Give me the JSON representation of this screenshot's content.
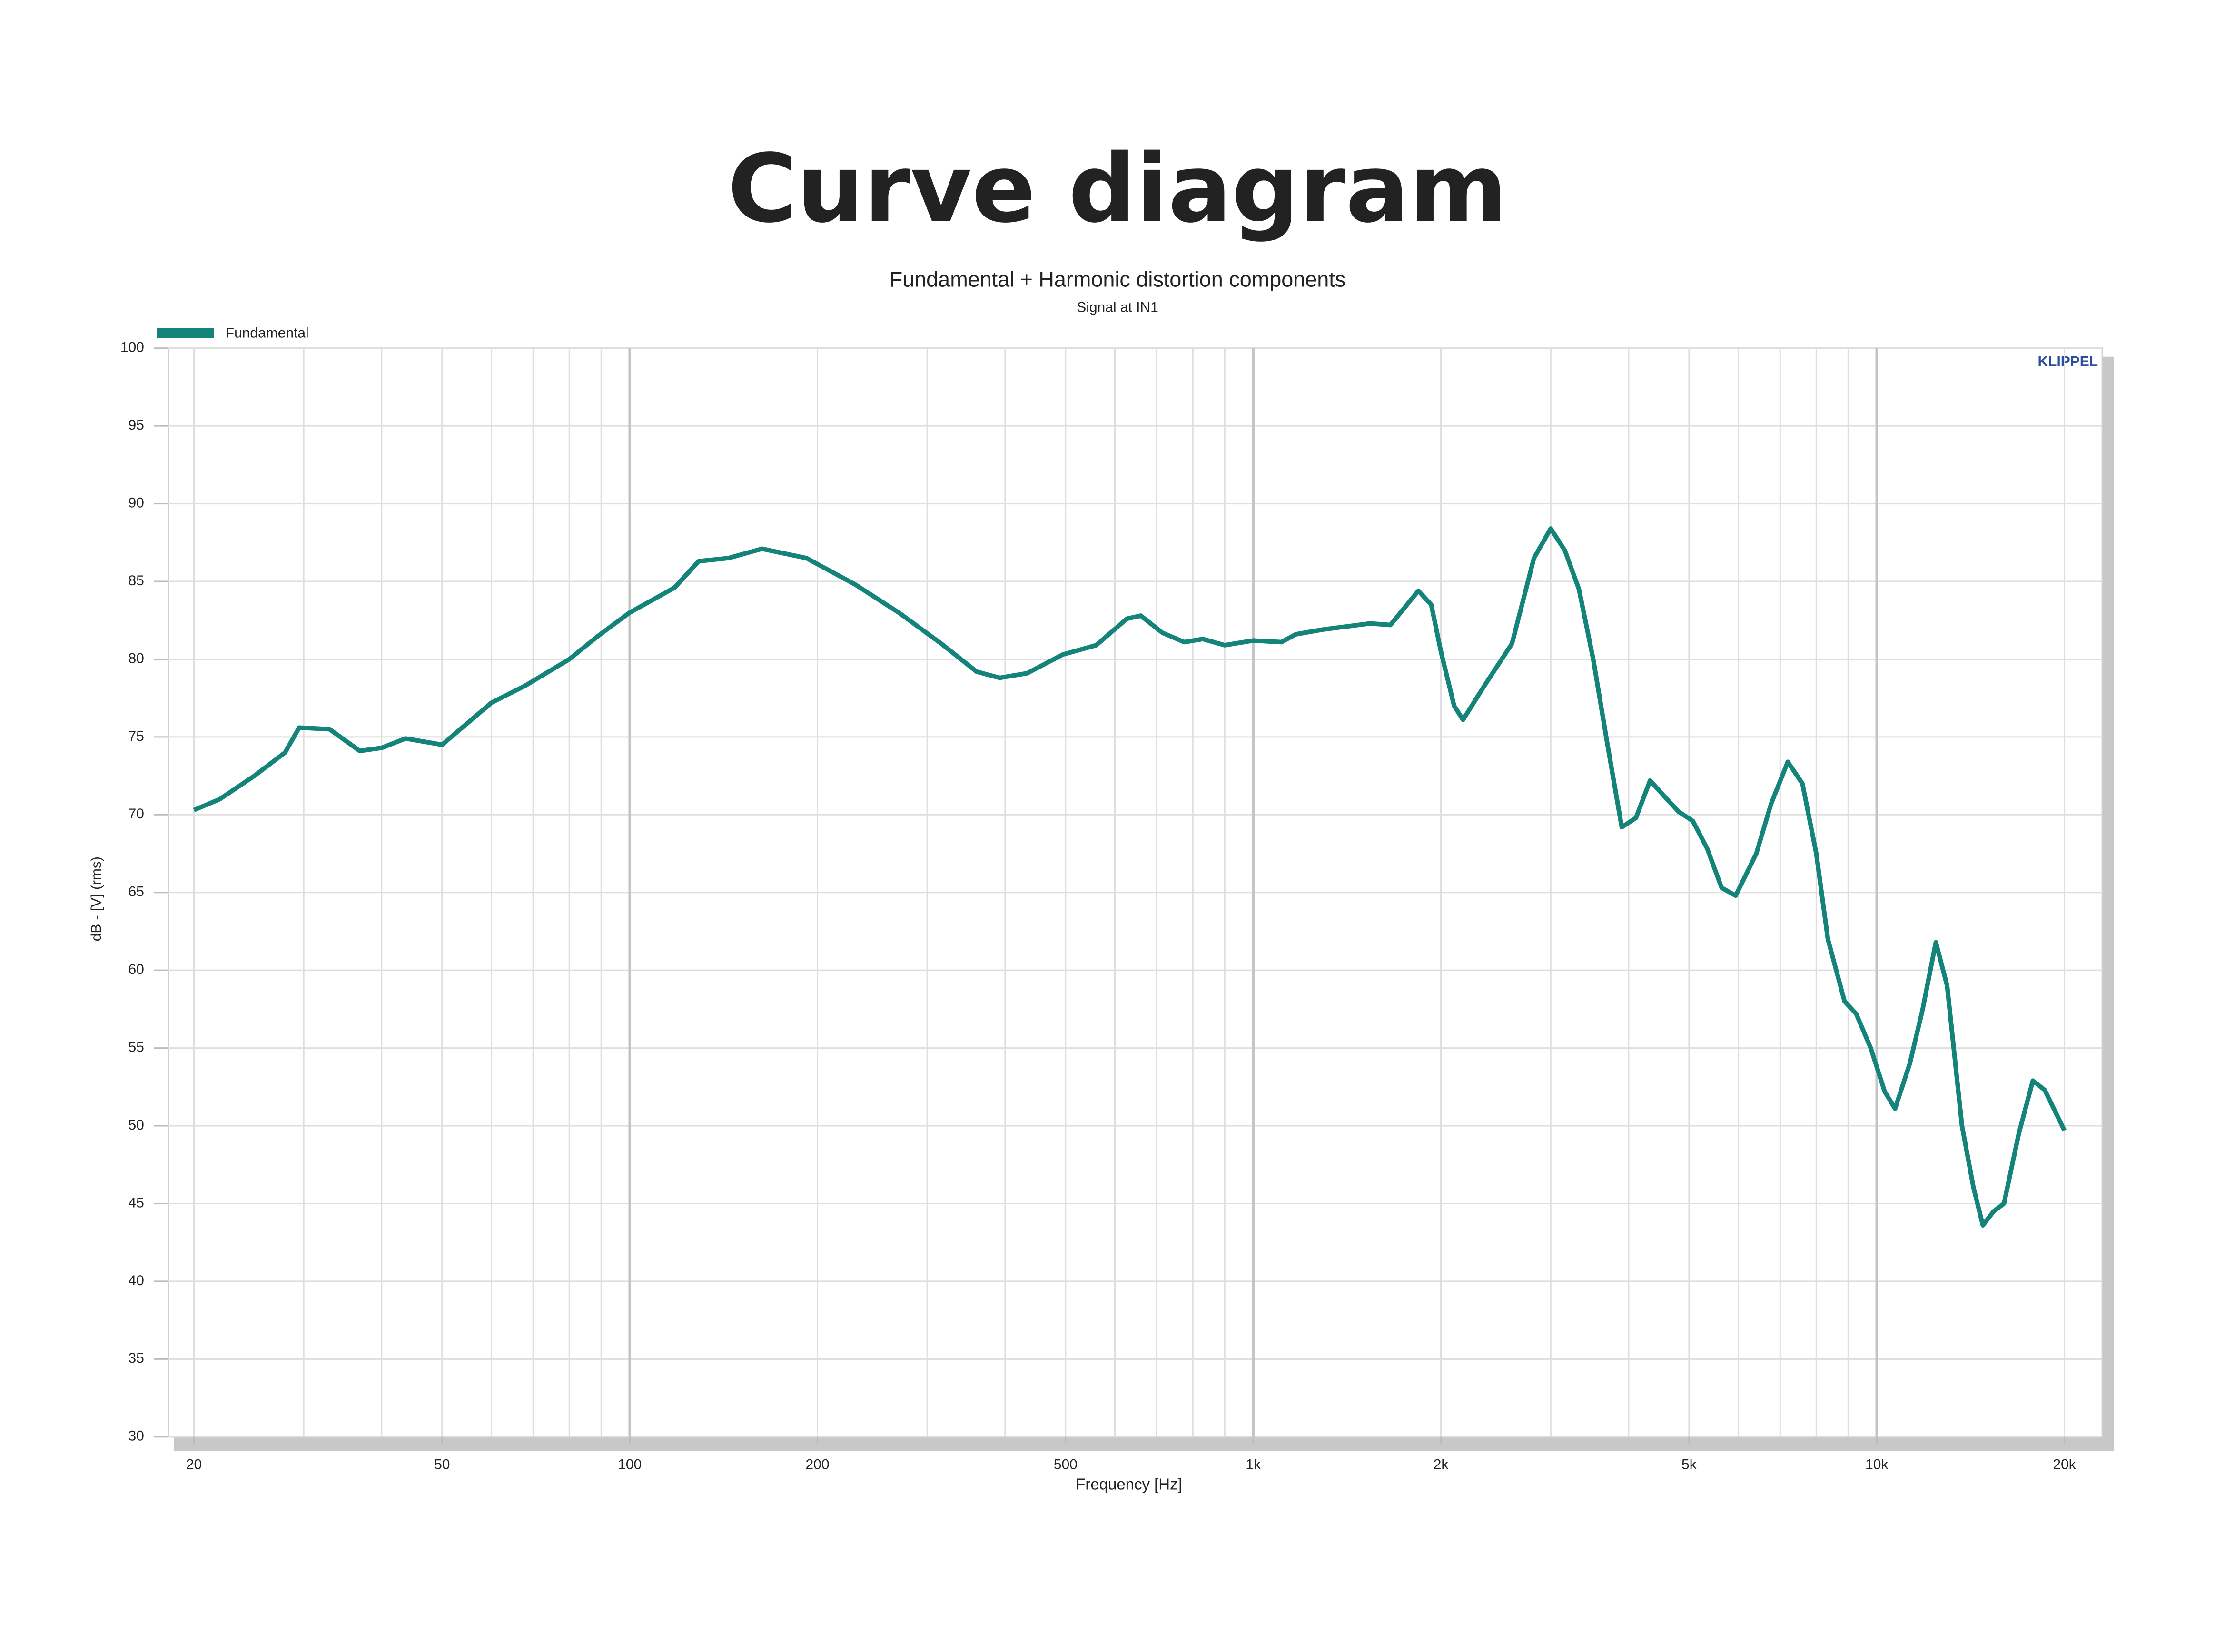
{
  "chart_data": {
    "type": "line",
    "title": "Curve diagram",
    "subtitle": "Fundamental + Harmonic distortion components",
    "subtitle2": "Signal at IN1",
    "watermark": "KLIPPEL",
    "x_label": "Frequency [Hz]",
    "y_label": "dB - [V] (rms)",
    "x_scale": "log",
    "grid": true,
    "legend": "top-left",
    "xlim": [
      18.2,
      23000
    ],
    "ylim": [
      30,
      100
    ],
    "xticks": [
      20,
      50,
      100,
      200,
      500,
      {
        "value": 1000,
        "label": "1k"
      },
      {
        "value": 2000,
        "label": "2k"
      },
      {
        "value": 5000,
        "label": "5k"
      },
      {
        "value": 10000,
        "label": "10k"
      },
      {
        "value": 20000,
        "label": "20k"
      }
    ],
    "x_minor_grid": [
      30,
      40,
      60,
      70,
      80,
      90,
      300,
      400,
      600,
      700,
      800,
      900,
      3000,
      4000,
      6000,
      7000,
      8000,
      9000
    ],
    "x_major_grid": [
      100,
      1000,
      10000
    ],
    "yticks": [
      30,
      35,
      40,
      45,
      50,
      55,
      60,
      65,
      70,
      75,
      80,
      85,
      90,
      95,
      100
    ],
    "x": [
      20,
      22,
      25,
      28,
      29.5,
      33,
      36.9,
      40,
      43.7,
      50,
      60,
      68,
      80,
      89,
      100,
      118,
      129,
      144,
      163,
      192,
      230,
      270,
      316,
      360,
      392,
      434,
      495,
      560,
      627,
      660,
      715,
      775,
      830,
      900,
      1000,
      1110,
      1170,
      1290,
      1540,
      1660,
      1840,
      1930,
      2000,
      2100,
      2170,
      2340,
      2600,
      2820,
      3000,
      3160,
      3330,
      3510,
      3700,
      3900,
      4110,
      4330,
      4560,
      4810,
      5070,
      5350,
      5640,
      5940,
      6410,
      6770,
      7200,
      7600,
      8000,
      8350,
      8880,
      9270,
      9780,
      10300,
      10700,
      11300,
      11850,
      12440,
      12970,
      13700,
      14300,
      14800,
      15400,
      16000,
      16900,
      17800,
      18600,
      20000
    ],
    "series": [
      {
        "name": "Fundamental",
        "color": "#14847a",
        "values": [
          70.3,
          71,
          72.5,
          74,
          75.6,
          75.5,
          74.1,
          74.3,
          74.9,
          74.5,
          77.2,
          78.3,
          80,
          81.5,
          83,
          84.6,
          86.3,
          86.5,
          87.1,
          86.5,
          84.8,
          83,
          81,
          79.2,
          78.8,
          79.1,
          80.3,
          80.9,
          82.6,
          82.8,
          81.7,
          81.1,
          81.3,
          80.9,
          81.2,
          81.1,
          81.6,
          81.9,
          82.3,
          82.2,
          84.4,
          83.5,
          80.5,
          77,
          76.1,
          78.2,
          81,
          86.5,
          88.4,
          87,
          84.5,
          80,
          74.5,
          69.2,
          69.8,
          72.2,
          71.2,
          70.2,
          69.6,
          67.8,
          65.3,
          64.8,
          67.5,
          70.7,
          73.4,
          72,
          67.5,
          62,
          58,
          57.2,
          55,
          52.2,
          51.1,
          54,
          57.5,
          61.8,
          59,
          50,
          46,
          43.6,
          44.5,
          45,
          49.5,
          52.9,
          52.3,
          49.7
        ]
      }
    ]
  }
}
